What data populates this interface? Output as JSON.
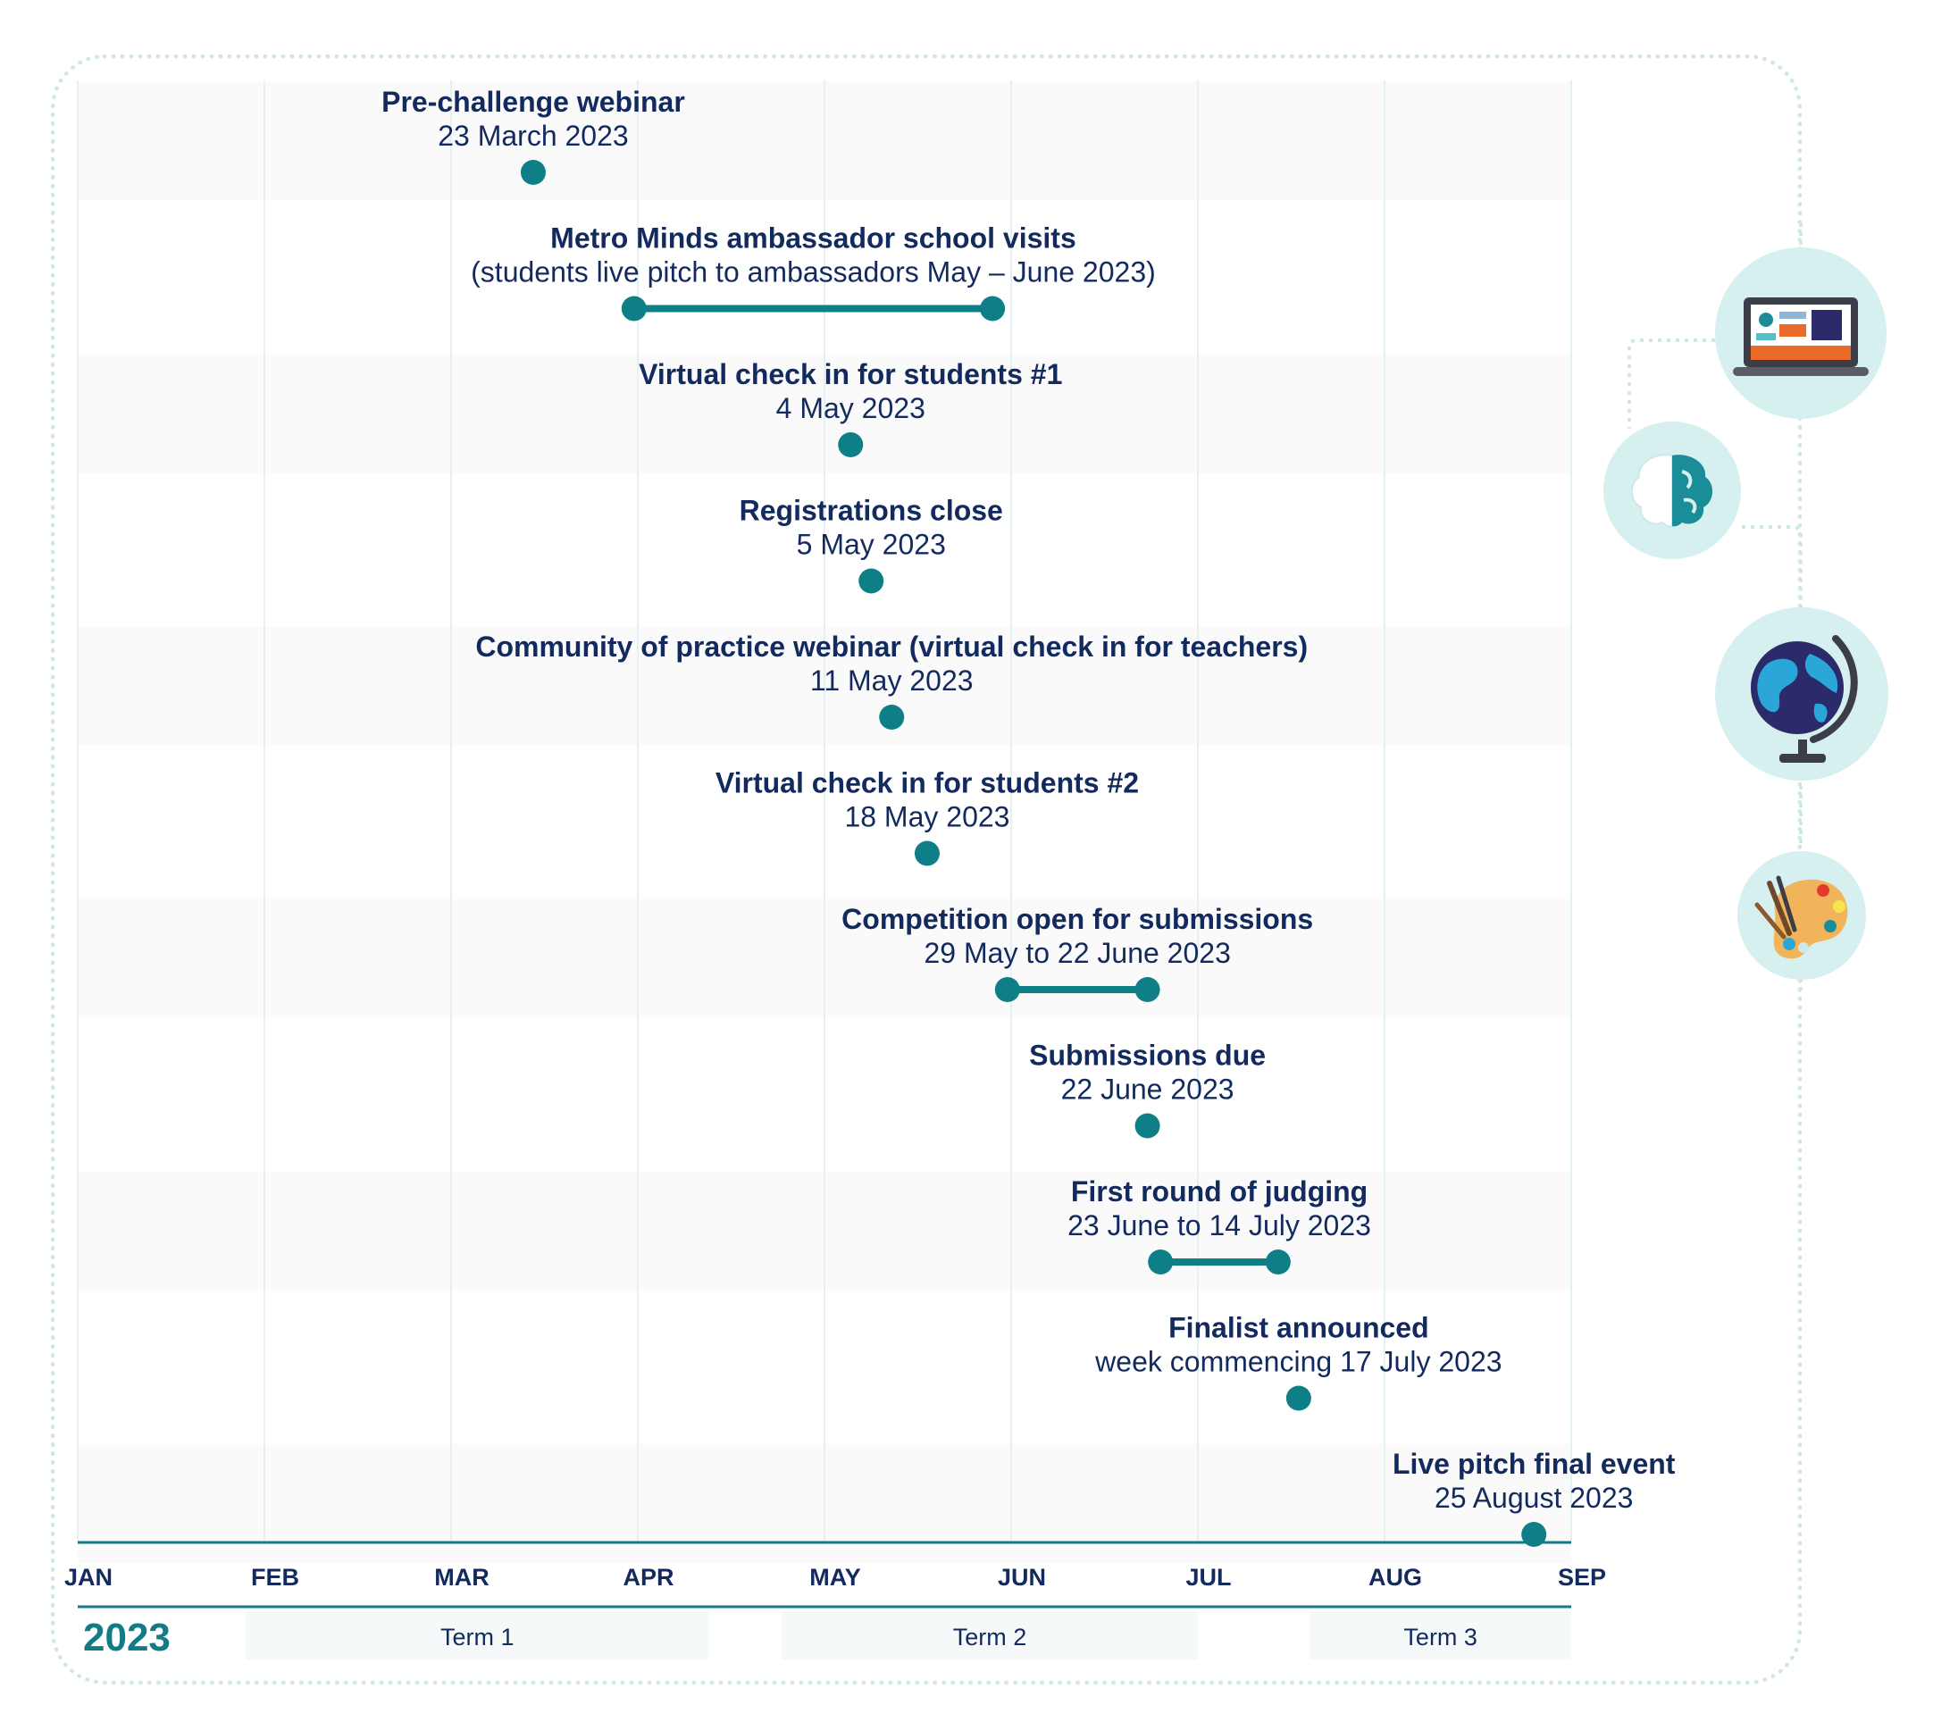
{
  "year": "2023",
  "colors": {
    "accent": "#137b84",
    "dot": "#0e7f87",
    "text": "#132a5e",
    "band": "#fafafa",
    "grid": "#e3f1f1",
    "iconBg": "#d6efef"
  },
  "months": [
    "JAN",
    "FEB",
    "MAR",
    "APR",
    "MAY",
    "JUN",
    "JUL",
    "AUG",
    "SEP"
  ],
  "terms": [
    {
      "label": "Term 1",
      "start": 0.9,
      "end": 3.38
    },
    {
      "label": "Term 2",
      "start": 3.77,
      "end": 6.0
    },
    {
      "label": "Term 3",
      "start": 6.6,
      "end": 8.0
    }
  ],
  "events": [
    {
      "title": "Pre-challenge webinar",
      "date": "23 March 2023",
      "start": 2.44
    },
    {
      "title": "Metro Minds ambassador school visits",
      "date": "(students live pitch to ambassadors May – June 2023)",
      "start": 2.98,
      "end": 4.9
    },
    {
      "title": "Virtual check in for students #1",
      "date": "4 May 2023",
      "start": 4.14
    },
    {
      "title": "Registrations close",
      "date": "5 May 2023",
      "start": 4.25
    },
    {
      "title": "Community of practice webinar (virtual check in for teachers)",
      "date": "11 May 2023",
      "start": 4.36
    },
    {
      "title": "Virtual check in for students #2",
      "date": "18 May 2023",
      "start": 4.55
    },
    {
      "title": "Competition open for submissions",
      "date": "29 May to 22 June 2023",
      "start": 4.98,
      "end": 5.73
    },
    {
      "title": "Submissions due",
      "date": "22 June 2023",
      "start": 5.73
    },
    {
      "title": "First round of judging",
      "date": "23 June to 14 July 2023",
      "start": 5.8,
      "end": 6.43
    },
    {
      "title": "Finalist announced",
      "date": "week commencing 17 July 2023",
      "start": 6.54
    },
    {
      "title": "Live pitch final event",
      "date": "25 August 2023",
      "start": 7.8
    }
  ],
  "icons": [
    {
      "name": "laptop-icon"
    },
    {
      "name": "brain-icon"
    },
    {
      "name": "globe-icon"
    },
    {
      "name": "palette-icon"
    }
  ]
}
